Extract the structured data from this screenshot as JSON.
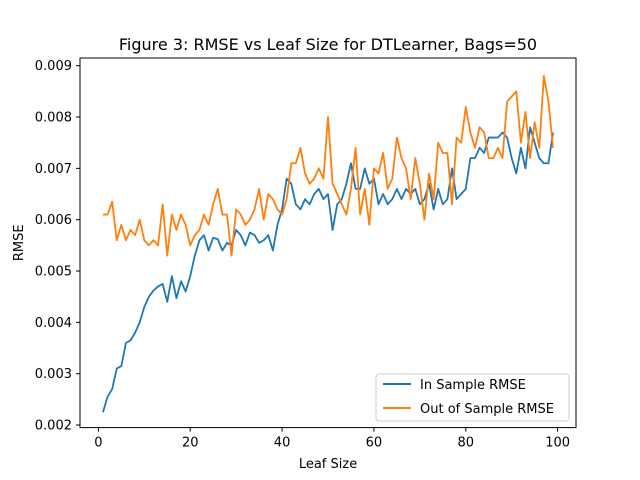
{
  "chart_data": {
    "type": "line",
    "title": "Figure 3: RMSE vs Leaf Size for DTLearner, Bags=50",
    "xlabel": "Leaf Size",
    "ylabel": "RMSE",
    "xlim": [
      -4,
      104
    ],
    "ylim": [
      0.00195,
      0.00915
    ],
    "xticks": [
      0,
      20,
      40,
      60,
      80,
      100
    ],
    "xtick_labels": [
      "0",
      "20",
      "40",
      "60",
      "80",
      "100"
    ],
    "yticks": [
      0.002,
      0.003,
      0.004,
      0.005,
      0.006,
      0.007,
      0.008,
      0.009
    ],
    "ytick_labels": [
      "0.002",
      "0.003",
      "0.004",
      "0.005",
      "0.006",
      "0.007",
      "0.008",
      "0.009"
    ],
    "grid": false,
    "legend_position": "lower-right",
    "x": [
      1,
      2,
      3,
      4,
      5,
      6,
      7,
      8,
      9,
      10,
      11,
      12,
      13,
      14,
      15,
      16,
      17,
      18,
      19,
      20,
      21,
      22,
      23,
      24,
      25,
      26,
      27,
      28,
      29,
      30,
      31,
      32,
      33,
      34,
      35,
      36,
      37,
      38,
      39,
      40,
      41,
      42,
      43,
      44,
      45,
      46,
      47,
      48,
      49,
      50,
      51,
      52,
      53,
      54,
      55,
      56,
      57,
      58,
      59,
      60,
      61,
      62,
      63,
      64,
      65,
      66,
      67,
      68,
      69,
      70,
      71,
      72,
      73,
      74,
      75,
      76,
      77,
      78,
      79,
      80,
      81,
      82,
      83,
      84,
      85,
      86,
      87,
      88,
      89,
      90,
      91,
      92,
      93,
      94,
      95,
      96,
      97,
      98,
      99
    ],
    "series": [
      {
        "name": "In Sample RMSE",
        "color": "#1f77b4",
        "values": [
          0.00225,
          0.00255,
          0.0027,
          0.0031,
          0.00315,
          0.0036,
          0.00365,
          0.0038,
          0.004,
          0.0043,
          0.0045,
          0.00462,
          0.0047,
          0.00475,
          0.0044,
          0.0049,
          0.00447,
          0.0048,
          0.0046,
          0.0049,
          0.0053,
          0.0056,
          0.0057,
          0.0054,
          0.00565,
          0.00562,
          0.0054,
          0.00555,
          0.0055,
          0.0058,
          0.0057,
          0.0055,
          0.00575,
          0.0057,
          0.00555,
          0.0056,
          0.0057,
          0.0054,
          0.0059,
          0.0062,
          0.0068,
          0.0067,
          0.0063,
          0.0062,
          0.0064,
          0.0063,
          0.0065,
          0.0066,
          0.0064,
          0.0065,
          0.0058,
          0.0063,
          0.0064,
          0.0067,
          0.0071,
          0.0066,
          0.0066,
          0.007,
          0.0067,
          0.0068,
          0.0063,
          0.0065,
          0.0063,
          0.0064,
          0.0066,
          0.0064,
          0.0066,
          0.0065,
          0.0066,
          0.0063,
          0.0064,
          0.0067,
          0.0062,
          0.0066,
          0.0063,
          0.0064,
          0.007,
          0.0064,
          0.0065,
          0.0066,
          0.0072,
          0.0072,
          0.0074,
          0.0073,
          0.0076,
          0.0076,
          0.0076,
          0.0077,
          0.0076,
          0.0072,
          0.0069,
          0.0074,
          0.007,
          0.0078,
          0.0075,
          0.0072,
          0.0071,
          0.0071,
          0.0077
        ]
      },
      {
        "name": "Out of Sample RMSE",
        "color": "#ff7f0e",
        "values": [
          0.0061,
          0.0061,
          0.00635,
          0.0056,
          0.0059,
          0.0056,
          0.0058,
          0.0057,
          0.006,
          0.0056,
          0.0055,
          0.0056,
          0.0055,
          0.0063,
          0.0053,
          0.0061,
          0.0058,
          0.0061,
          0.0059,
          0.0055,
          0.0057,
          0.0058,
          0.0061,
          0.0059,
          0.0063,
          0.0066,
          0.0061,
          0.0061,
          0.0053,
          0.0062,
          0.0061,
          0.0059,
          0.006,
          0.0062,
          0.0066,
          0.006,
          0.0065,
          0.0064,
          0.0062,
          0.0061,
          0.0064,
          0.0071,
          0.0071,
          0.0074,
          0.0069,
          0.0067,
          0.0068,
          0.007,
          0.0068,
          0.008,
          0.0067,
          0.0065,
          0.0063,
          0.0061,
          0.0066,
          0.0074,
          0.0061,
          0.0066,
          0.0059,
          0.007,
          0.0069,
          0.0073,
          0.0066,
          0.0068,
          0.0076,
          0.0072,
          0.007,
          0.0064,
          0.0072,
          0.0067,
          0.006,
          0.0069,
          0.0064,
          0.0075,
          0.0073,
          0.0073,
          0.0063,
          0.0076,
          0.0075,
          0.0082,
          0.0077,
          0.0074,
          0.0078,
          0.0077,
          0.0072,
          0.0072,
          0.0074,
          0.0072,
          0.0083,
          0.0084,
          0.0085,
          0.0075,
          0.0081,
          0.0072,
          0.0079,
          0.0074,
          0.0088,
          0.0083,
          0.0074
        ]
      }
    ]
  }
}
